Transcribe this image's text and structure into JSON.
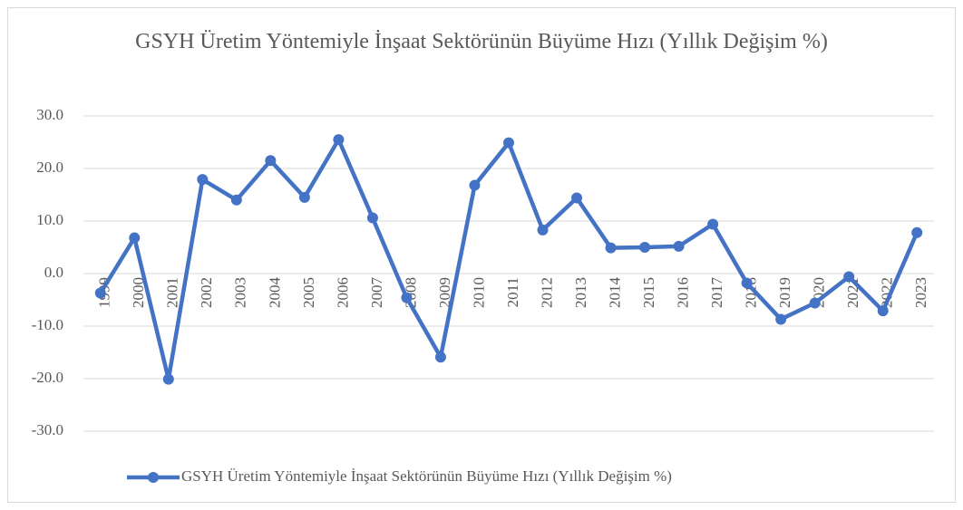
{
  "chart_data": {
    "type": "line",
    "title": "GSYH Üretim Yöntemiyle İnşaat Sektörünün Büyüme Hızı (Yıllık Değişim %)",
    "categories": [
      "1999",
      "2000",
      "2001",
      "2002",
      "2003",
      "2004",
      "2005",
      "2006",
      "2007",
      "2008",
      "2009",
      "2010",
      "2011",
      "2012",
      "2013",
      "2014",
      "2015",
      "2016",
      "2017",
      "2018",
      "2019",
      "2020",
      "2021",
      "2022",
      "2023"
    ],
    "series": [
      {
        "name": "GSYH Üretim Yöntemiyle İnşaat Sektörünün Büyüme Hızı (Yıllık Değişim %)",
        "color": "#4472c4",
        "values": [
          -3.7,
          6.8,
          -20.1,
          17.9,
          14.0,
          21.5,
          14.5,
          25.5,
          10.6,
          -4.6,
          -15.9,
          16.8,
          24.9,
          8.3,
          14.4,
          4.9,
          5.0,
          5.2,
          9.4,
          -1.8,
          -8.7,
          -5.6,
          -0.6,
          -7.1,
          7.8
        ]
      }
    ],
    "ylim": [
      -30,
      30
    ],
    "yticks": [
      {
        "value": -30,
        "label": "-30.0"
      },
      {
        "value": -20,
        "label": "-20.0"
      },
      {
        "value": -10,
        "label": "-10.0"
      },
      {
        "value": 0,
        "label": "0.0"
      },
      {
        "value": 10,
        "label": "10.0"
      },
      {
        "value": 20,
        "label": "20.0"
      },
      {
        "value": 30,
        "label": "30.0"
      }
    ],
    "grid": true,
    "legend": "bottom"
  }
}
